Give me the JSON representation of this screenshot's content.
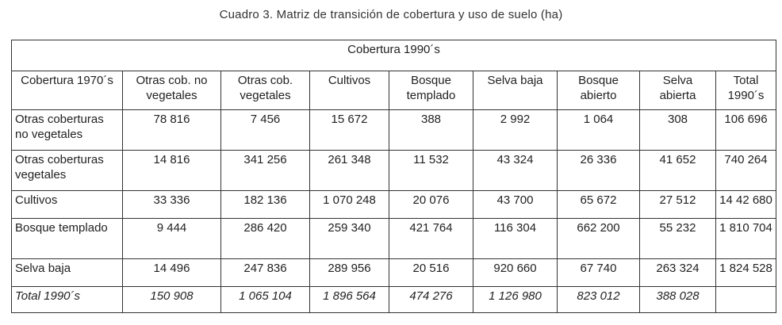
{
  "caption": "Cuadro 3. Matriz de transición de cobertura y uso de suelo (ha)",
  "span_header": "Cobertura 1990´s",
  "row_header_label": "Cobertura 1970´s",
  "columns": [
    "Otras cob. no vegetales",
    "Otras cob. vegetales",
    "Cultivos",
    "Bosque templado",
    "Selva baja",
    "Bosque abierto",
    "Selva abierta",
    "Total 1990´s"
  ],
  "rows": [
    {
      "label": "Otras coberturas no vegetales",
      "values": [
        "78 816",
        "7 456",
        "15 672",
        "388",
        "2 992",
        "1 064",
        "308",
        "106 696"
      ]
    },
    {
      "label": "Otras coberturas vegetales",
      "values": [
        "14 816",
        "341 256",
        "261 348",
        "11 532",
        "43 324",
        "26 336",
        "41 652",
        "740 264"
      ]
    },
    {
      "label": "Cultivos",
      "values": [
        "33 336",
        "182 136",
        "1 070 248",
        "20 076",
        "43 700",
        "65 672",
        "27 512",
        "14 42 680"
      ]
    },
    {
      "label": "Bosque templado",
      "values": [
        "9 444",
        "286 420",
        "259 340",
        "421 764",
        "116 304",
        "662 200",
        "55 232",
        "1 810 704"
      ]
    },
    {
      "label": "Selva baja",
      "values": [
        "14 496",
        "247 836",
        "289 956",
        "20 516",
        "920 660",
        "67 740",
        "263 324",
        "1 824 528"
      ]
    }
  ],
  "total_row": {
    "label": "Total 1990´s",
    "values": [
      "150 908",
      "1 065 104",
      "1 896 564",
      "474 276",
      "1 126 980",
      "823 012",
      "388 028",
      ""
    ]
  }
}
